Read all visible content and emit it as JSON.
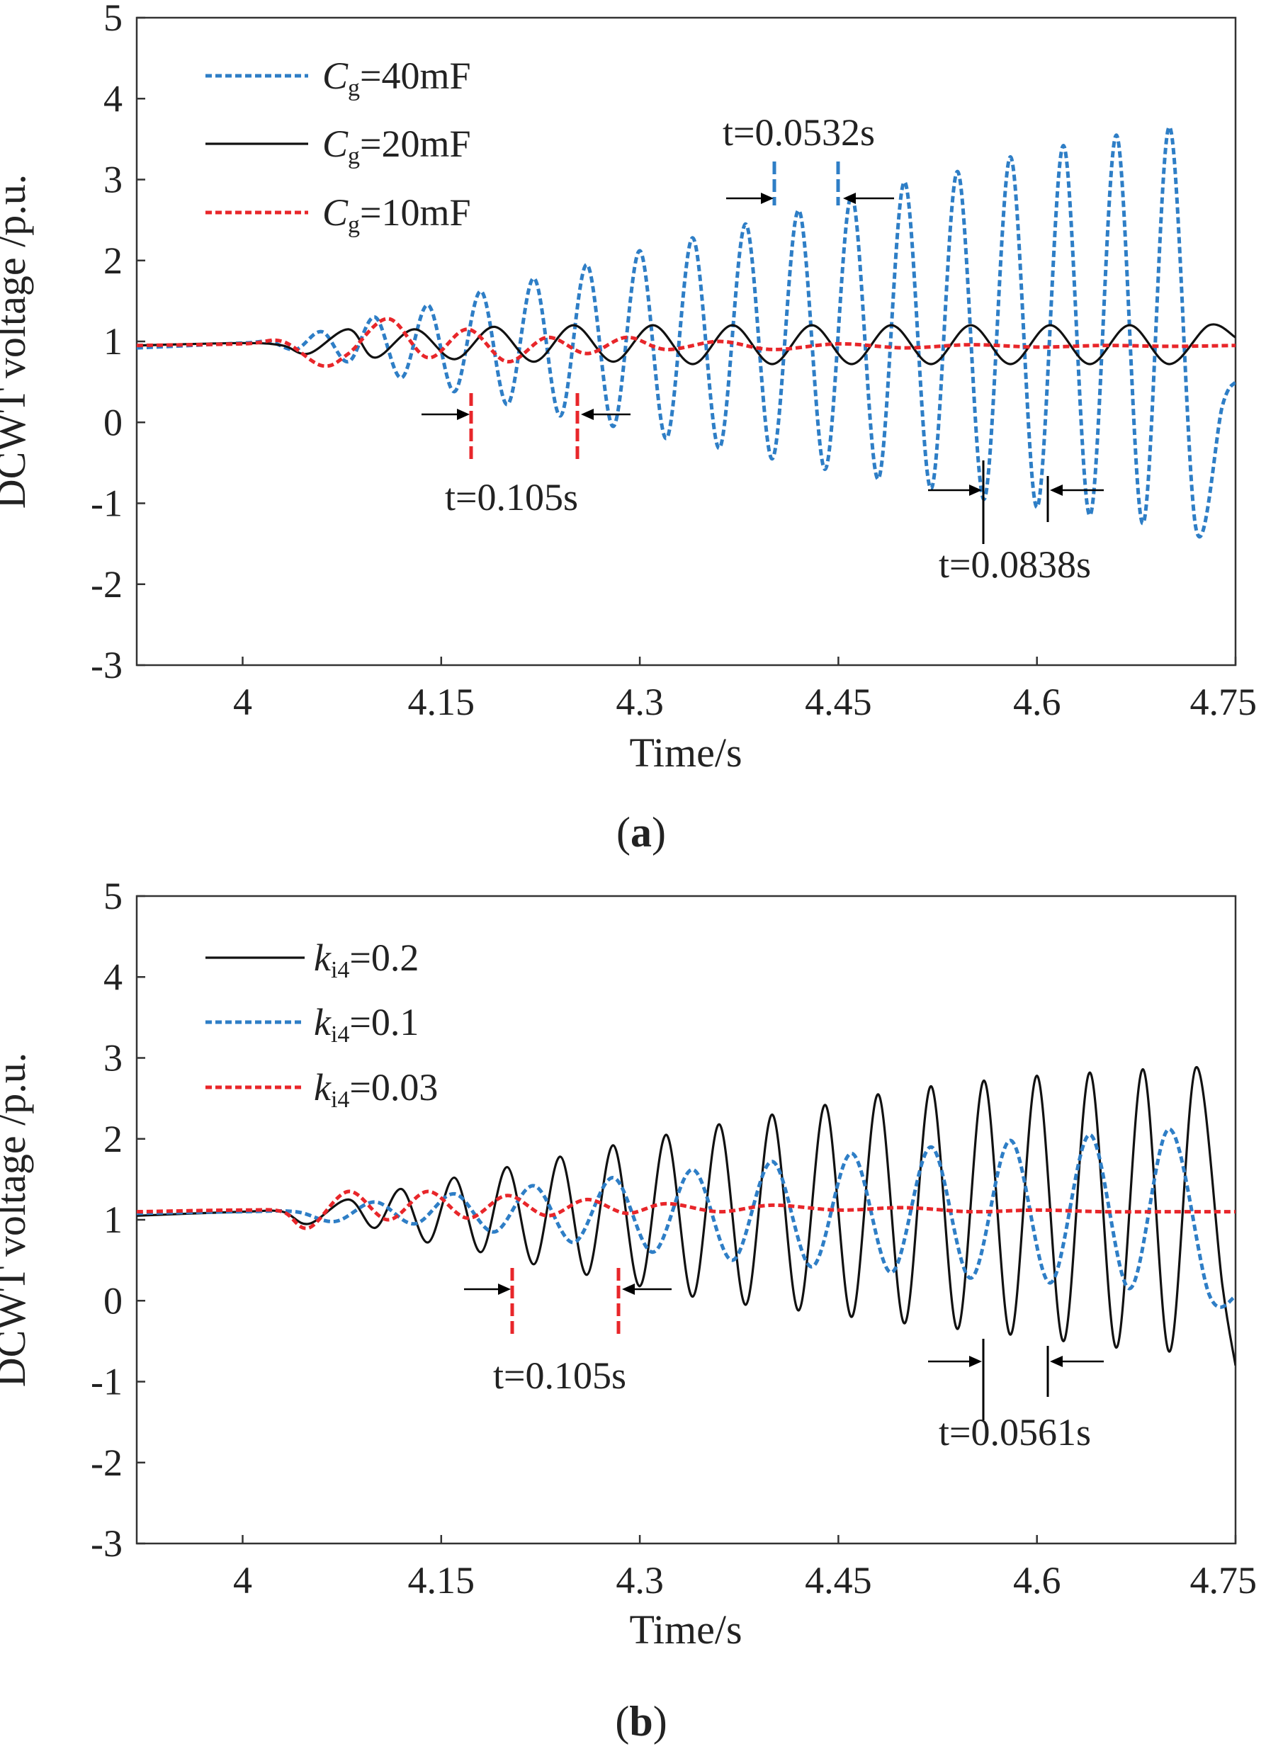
{
  "chart_data": [
    {
      "panel_label": "(a)",
      "type": "line",
      "xlabel": "Time/s",
      "ylabel": "DCWT voltage  /p.u.",
      "xlim": [
        3.92,
        4.75
      ],
      "ylim": [
        -3,
        5
      ],
      "xticks": [
        4,
        4.15,
        4.3,
        4.45,
        4.6,
        4.75
      ],
      "xtick_labels": [
        "4",
        "4.15",
        "4.3",
        "4.45",
        "4.6",
        "4.75"
      ],
      "yticks": [
        5,
        4,
        3,
        2,
        1,
        0,
        -1,
        -2,
        -3
      ],
      "ytick_labels": [
        "5",
        "4",
        "3",
        "2",
        "1",
        "0",
        "-1",
        "-2",
        "-3"
      ],
      "grid": false,
      "legend_position": "top-left",
      "series": [
        {
          "name_main": "C",
          "name_sub": "g",
          "name_rest": "=40mF",
          "color": "#2e7ec6",
          "style": "dotted",
          "x": [
            3.92,
            4.0,
            4.02,
            4.04,
            4.06,
            4.08,
            4.1,
            4.12,
            4.14,
            4.16,
            4.18,
            4.2,
            4.22,
            4.24,
            4.26,
            4.28,
            4.3,
            4.32,
            4.34,
            4.36,
            4.38,
            4.4,
            4.42,
            4.44,
            4.46,
            4.48,
            4.5,
            4.52,
            4.54,
            4.56,
            4.58,
            4.6,
            4.62,
            4.64,
            4.66,
            4.68,
            4.7,
            4.72,
            4.74,
            4.75
          ],
          "y": [
            0.92,
            0.98,
            1.0,
            0.9,
            1.12,
            0.75,
            1.3,
            0.55,
            1.45,
            0.38,
            1.62,
            0.22,
            1.78,
            0.08,
            1.95,
            -0.05,
            2.12,
            -0.2,
            2.28,
            -0.32,
            2.45,
            -0.45,
            2.62,
            -0.58,
            2.8,
            -0.7,
            2.97,
            -0.82,
            3.1,
            -0.95,
            3.28,
            -1.05,
            3.42,
            -1.15,
            3.55,
            -1.25,
            3.65,
            -1.3,
            0.2,
            0.5
          ]
        },
        {
          "name_main": "C",
          "name_sub": "g",
          "name_rest": "=20mF",
          "color": "#111111",
          "style": "solid",
          "x": [
            3.92,
            4.0,
            4.03,
            4.05,
            4.08,
            4.1,
            4.13,
            4.16,
            4.19,
            4.22,
            4.25,
            4.28,
            4.31,
            4.34,
            4.37,
            4.4,
            4.43,
            4.46,
            4.49,
            4.52,
            4.55,
            4.58,
            4.61,
            4.64,
            4.67,
            4.7,
            4.73,
            4.75
          ],
          "y": [
            0.95,
            0.98,
            0.95,
            0.85,
            1.15,
            0.8,
            1.15,
            0.78,
            1.18,
            0.75,
            1.2,
            0.75,
            1.2,
            0.72,
            1.2,
            0.72,
            1.2,
            0.72,
            1.2,
            0.72,
            1.2,
            0.72,
            1.2,
            0.72,
            1.2,
            0.72,
            1.2,
            1.05
          ]
        },
        {
          "name_main": "C",
          "name_sub": "g",
          "name_rest": "=10mF",
          "color": "#e8262a",
          "style": "dotted",
          "x": [
            3.92,
            4.0,
            4.03,
            4.06,
            4.08,
            4.11,
            4.14,
            4.17,
            4.2,
            4.23,
            4.26,
            4.29,
            4.32,
            4.36,
            4.4,
            4.45,
            4.5,
            4.55,
            4.6,
            4.65,
            4.7,
            4.75
          ],
          "y": [
            0.95,
            0.97,
            1.0,
            0.7,
            0.85,
            1.28,
            0.8,
            1.15,
            0.75,
            1.05,
            0.85,
            1.05,
            0.9,
            1.0,
            0.9,
            0.97,
            0.92,
            0.96,
            0.93,
            0.95,
            0.94,
            0.95
          ]
        }
      ],
      "annotations": [
        {
          "text": "t=0.0532s",
          "color": "#2e7ec6"
        },
        {
          "text": "t=0.105s",
          "color": "#e8262a"
        },
        {
          "text": "t=0.0838s",
          "color": "#111111"
        }
      ]
    },
    {
      "panel_label": "(b)",
      "type": "line",
      "xlabel": "Time/s",
      "ylabel": "DCWT voltage  /p.u.",
      "xlim": [
        3.92,
        4.75
      ],
      "ylim": [
        -3,
        5
      ],
      "xticks": [
        4,
        4.15,
        4.3,
        4.45,
        4.6,
        4.75
      ],
      "xtick_labels": [
        "4",
        "4.15",
        "4.3",
        "4.45",
        "4.6",
        "4.75"
      ],
      "yticks": [
        5,
        4,
        3,
        2,
        1,
        0,
        -1,
        -2,
        -3
      ],
      "ytick_labels": [
        "5",
        "4",
        "3",
        "2",
        "1",
        "0",
        "-1",
        "-2",
        "-3"
      ],
      "grid": false,
      "legend_position": "top-left",
      "series": [
        {
          "name_main": "k",
          "name_sub": "i4",
          "name_rest": "=0.2",
          "color": "#111111",
          "style": "solid",
          "x": [
            3.92,
            4.0,
            4.03,
            4.05,
            4.08,
            4.1,
            4.12,
            4.14,
            4.16,
            4.18,
            4.2,
            4.22,
            4.24,
            4.26,
            4.28,
            4.3,
            4.32,
            4.34,
            4.36,
            4.38,
            4.4,
            4.42,
            4.44,
            4.46,
            4.48,
            4.5,
            4.52,
            4.54,
            4.56,
            4.58,
            4.6,
            4.62,
            4.64,
            4.66,
            4.68,
            4.7,
            4.72,
            4.74,
            4.75
          ],
          "y": [
            1.05,
            1.1,
            1.1,
            0.95,
            1.25,
            0.9,
            1.38,
            0.72,
            1.52,
            0.6,
            1.65,
            0.45,
            1.78,
            0.32,
            1.92,
            0.18,
            2.05,
            0.05,
            2.18,
            -0.05,
            2.3,
            -0.12,
            2.42,
            -0.2,
            2.55,
            -0.28,
            2.65,
            -0.35,
            2.72,
            -0.42,
            2.78,
            -0.5,
            2.82,
            -0.58,
            2.86,
            -0.63,
            2.88,
            0.2,
            -0.8
          ]
        },
        {
          "name_main": "k",
          "name_sub": "i4",
          "name_rest": "=0.1",
          "color": "#2e7ec6",
          "style": "dotted",
          "x": [
            3.92,
            4.0,
            4.04,
            4.07,
            4.1,
            4.13,
            4.16,
            4.19,
            4.22,
            4.25,
            4.28,
            4.31,
            4.34,
            4.37,
            4.4,
            4.43,
            4.46,
            4.49,
            4.52,
            4.55,
            4.58,
            4.61,
            4.64,
            4.67,
            4.7,
            4.73,
            4.75
          ],
          "y": [
            1.08,
            1.1,
            1.1,
            0.98,
            1.22,
            0.95,
            1.32,
            0.85,
            1.42,
            0.72,
            1.52,
            0.6,
            1.62,
            0.5,
            1.72,
            0.42,
            1.82,
            0.35,
            1.9,
            0.28,
            1.98,
            0.22,
            2.05,
            0.15,
            2.12,
            0.08,
            0.05
          ]
        },
        {
          "name_main": "k",
          "name_sub": "i4",
          "name_rest": "=0.03",
          "color": "#e8262a",
          "style": "dotted",
          "x": [
            3.92,
            4.0,
            4.03,
            4.05,
            4.08,
            4.11,
            4.14,
            4.17,
            4.2,
            4.23,
            4.26,
            4.29,
            4.32,
            4.36,
            4.4,
            4.45,
            4.5,
            4.55,
            4.6,
            4.65,
            4.7,
            4.75
          ],
          "y": [
            1.1,
            1.12,
            1.1,
            0.9,
            1.35,
            1.0,
            1.35,
            1.02,
            1.3,
            1.05,
            1.25,
            1.08,
            1.2,
            1.1,
            1.18,
            1.12,
            1.15,
            1.1,
            1.12,
            1.1,
            1.1,
            1.1
          ]
        }
      ],
      "annotations": [
        {
          "text": "t=0.105s",
          "color": "#e8262a"
        },
        {
          "text": "t=0.0561s",
          "color": "#111111"
        }
      ]
    }
  ]
}
